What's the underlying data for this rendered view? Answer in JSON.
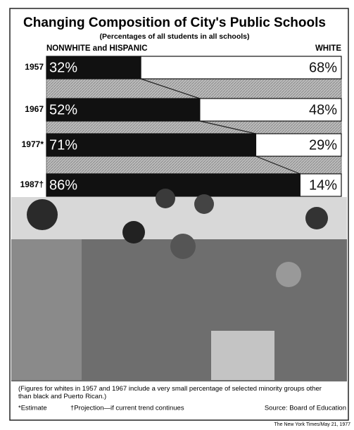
{
  "chart_data": {
    "type": "stacked-bar-horizontal",
    "title": "Changing Composition of City's Public Schools",
    "subtitle": "(Percentages of all students in all schools)",
    "categories": [
      "1957",
      "1967",
      "1977*",
      "1987†"
    ],
    "series": [
      {
        "name": "NONWHITE and HISPANIC",
        "color": "#111111",
        "values": [
          32,
          52,
          71,
          86
        ],
        "value_labels": [
          "32%",
          "52%",
          "71%",
          "86%"
        ]
      },
      {
        "name": "WHITE",
        "color": "#ffffff",
        "values": [
          68,
          48,
          29,
          14
        ],
        "value_labels": [
          "68%",
          "48%",
          "29%",
          "14%"
        ]
      }
    ],
    "footnote": "(Figures for whites in 1957 and 1967 include a very small percentage of selected minority groups other than black and Puerto Rican.)",
    "notes": [
      "*Estimate",
      "†Projection—if current trend continues"
    ],
    "source": "Source: Board of Education",
    "credit": "The New York Times/May 21, 1977"
  }
}
